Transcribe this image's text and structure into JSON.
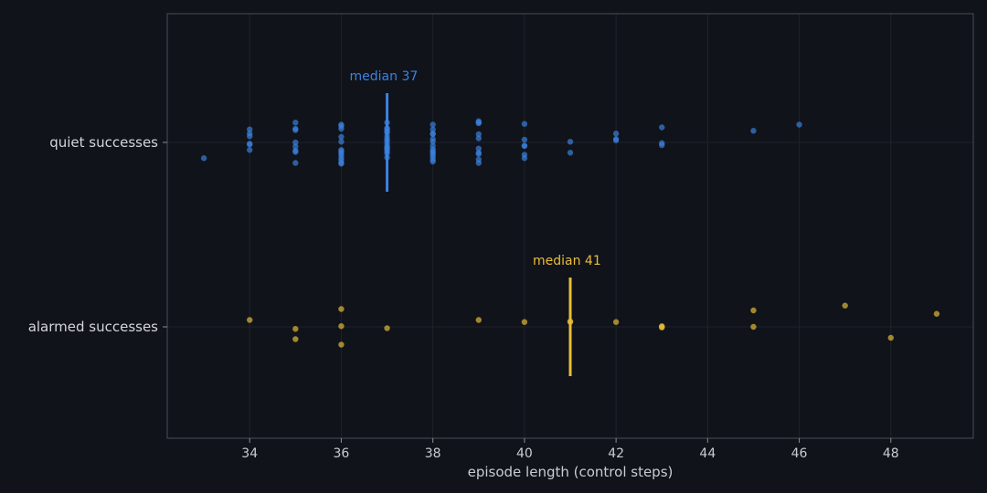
{
  "chart_data": {
    "type": "scatter",
    "title": "",
    "xlabel": "episode length (control steps)",
    "ylabel": "",
    "xlim": [
      32.2,
      49.8
    ],
    "xticks": [
      34,
      36,
      38,
      40,
      42,
      44,
      46,
      48
    ],
    "grid": true,
    "categories": [
      "quiet successes",
      "alarmed successes"
    ],
    "colors": {
      "quiet successes": "#3b82e0",
      "alarmed successes": "#e8bd3a",
      "background": "#10131a",
      "frame": "#4a4d55"
    },
    "series": [
      {
        "name": "quiet successes",
        "median": 37,
        "median_label": "median 37",
        "points": [
          {
            "x": 33,
            "j": -0.23
          },
          {
            "x": 34,
            "j": -0.11
          },
          {
            "x": 34,
            "j": -0.03
          },
          {
            "x": 34,
            "j": -0.02
          },
          {
            "x": 34,
            "j": 0.09
          },
          {
            "x": 34,
            "j": 0.13
          },
          {
            "x": 34,
            "j": 0.19
          },
          {
            "x": 35,
            "j": -0.3
          },
          {
            "x": 35,
            "j": -0.14
          },
          {
            "x": 35,
            "j": -0.12
          },
          {
            "x": 35,
            "j": -0.06
          },
          {
            "x": 35,
            "j": 0.0
          },
          {
            "x": 35,
            "j": 0.18
          },
          {
            "x": 35,
            "j": 0.2
          },
          {
            "x": 35,
            "j": 0.29
          },
          {
            "x": 36,
            "j": -0.31
          },
          {
            "x": 36,
            "j": -0.3
          },
          {
            "x": 36,
            "j": -0.26
          },
          {
            "x": 36,
            "j": -0.23
          },
          {
            "x": 36,
            "j": -0.19
          },
          {
            "x": 36,
            "j": -0.16
          },
          {
            "x": 36,
            "j": -0.13
          },
          {
            "x": 36,
            "j": -0.11
          },
          {
            "x": 36,
            "j": 0.01
          },
          {
            "x": 36,
            "j": 0.08
          },
          {
            "x": 36,
            "j": 0.2
          },
          {
            "x": 36,
            "j": 0.24
          },
          {
            "x": 36,
            "j": 0.26
          },
          {
            "x": 37,
            "j": -0.22
          },
          {
            "x": 37,
            "j": -0.16
          },
          {
            "x": 37,
            "j": -0.13
          },
          {
            "x": 37,
            "j": -0.1
          },
          {
            "x": 37,
            "j": -0.08
          },
          {
            "x": 37,
            "j": -0.06
          },
          {
            "x": 37,
            "j": -0.02
          },
          {
            "x": 37,
            "j": 0.02
          },
          {
            "x": 37,
            "j": 0.05
          },
          {
            "x": 37,
            "j": 0.09
          },
          {
            "x": 37,
            "j": 0.14
          },
          {
            "x": 37,
            "j": 0.16
          },
          {
            "x": 37,
            "j": 0.19
          },
          {
            "x": 37,
            "j": 0.21
          },
          {
            "x": 37,
            "j": 0.29
          },
          {
            "x": 38,
            "j": -0.28
          },
          {
            "x": 38,
            "j": -0.25
          },
          {
            "x": 38,
            "j": -0.21
          },
          {
            "x": 38,
            "j": -0.18
          },
          {
            "x": 38,
            "j": -0.15
          },
          {
            "x": 38,
            "j": -0.13
          },
          {
            "x": 38,
            "j": -0.1
          },
          {
            "x": 38,
            "j": -0.05
          },
          {
            "x": 38,
            "j": 0.01
          },
          {
            "x": 38,
            "j": 0.05
          },
          {
            "x": 38,
            "j": 0.12
          },
          {
            "x": 38,
            "j": 0.13
          },
          {
            "x": 38,
            "j": 0.19
          },
          {
            "x": 38,
            "j": 0.26
          },
          {
            "x": 39,
            "j": -0.3
          },
          {
            "x": 39,
            "j": -0.25
          },
          {
            "x": 39,
            "j": -0.17
          },
          {
            "x": 39,
            "j": -0.15
          },
          {
            "x": 39,
            "j": -0.09
          },
          {
            "x": 39,
            "j": 0.06
          },
          {
            "x": 39,
            "j": 0.12
          },
          {
            "x": 39,
            "j": 0.28
          },
          {
            "x": 39,
            "j": 0.29
          },
          {
            "x": 39,
            "j": 0.31
          },
          {
            "x": 40,
            "j": -0.23
          },
          {
            "x": 40,
            "j": -0.18
          },
          {
            "x": 40,
            "j": -0.05
          },
          {
            "x": 40,
            "j": -0.05
          },
          {
            "x": 40,
            "j": 0.04
          },
          {
            "x": 40,
            "j": 0.27
          },
          {
            "x": 41,
            "j": -0.15
          },
          {
            "x": 41,
            "j": 0.01
          },
          {
            "x": 42,
            "j": 0.03
          },
          {
            "x": 42,
            "j": 0.05
          },
          {
            "x": 42,
            "j": 0.13
          },
          {
            "x": 43,
            "j": -0.04
          },
          {
            "x": 43,
            "j": -0.01
          },
          {
            "x": 43,
            "j": 0.22
          },
          {
            "x": 45,
            "j": 0.17
          },
          {
            "x": 46,
            "j": 0.26
          }
        ]
      },
      {
        "name": "alarmed successes",
        "median": 41,
        "median_label": "median 41",
        "points": [
          {
            "x": 34,
            "j": 0.1
          },
          {
            "x": 35,
            "j": -0.18
          },
          {
            "x": 35,
            "j": -0.03
          },
          {
            "x": 36,
            "j": -0.26
          },
          {
            "x": 36,
            "j": 0.01
          },
          {
            "x": 36,
            "j": 0.26
          },
          {
            "x": 37,
            "j": -0.02
          },
          {
            "x": 39,
            "j": 0.1
          },
          {
            "x": 40,
            "j": 0.07
          },
          {
            "x": 41,
            "j": 0.07
          },
          {
            "x": 41,
            "j": 0.08
          },
          {
            "x": 42,
            "j": 0.07
          },
          {
            "x": 43,
            "j": -0.01
          },
          {
            "x": 43,
            "j": 0.0
          },
          {
            "x": 43,
            "j": 0.01
          },
          {
            "x": 45,
            "j": 0.0
          },
          {
            "x": 45,
            "j": 0.24
          },
          {
            "x": 47,
            "j": 0.31
          },
          {
            "x": 48,
            "j": -0.16
          },
          {
            "x": 49,
            "j": 0.19
          }
        ]
      }
    ]
  }
}
